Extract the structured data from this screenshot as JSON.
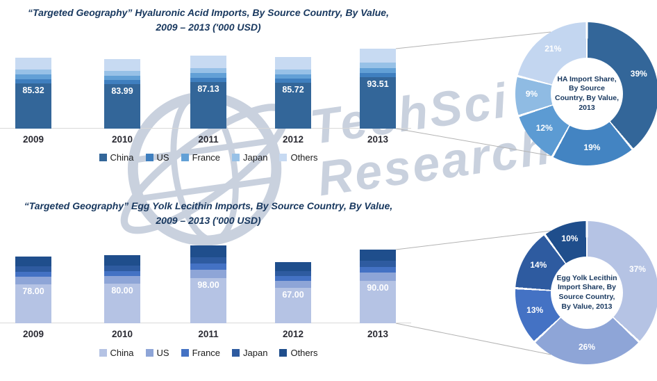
{
  "watermark": {
    "line1": "TechSci",
    "line2": "Research"
  },
  "panels": [
    {
      "title_line1": "“Targeted Geography” Hyaluronic Acid Imports, By Source Country, By Value,",
      "title_line2": "2009 – 2013 ('000 USD)",
      "donut_center_label": "HA Import Share, By Source Country, By Value, 2013"
    },
    {
      "title_line1": "“Targeted Geography” Egg Yolk Lecithin Imports, By Source Country, By Value,",
      "title_line2": "2009 – 2013 ('000 USD)",
      "donut_center_label": "Egg Yolk Lecithin Import Share, By Source Country, By Value, 2013"
    }
  ],
  "chart_data": [
    {
      "type": "bar",
      "stacked": true,
      "title": "“Targeted Geography” Hyaluronic Acid Imports, By Source Country, By Value, 2009 – 2013 ('000 USD)",
      "categories": [
        "2009",
        "2010",
        "2011",
        "2012",
        "2013"
      ],
      "totals": [
        85.32,
        83.99,
        87.13,
        85.72,
        93.51
      ],
      "total_labels": [
        "85.32",
        "83.99",
        "87.13",
        "85.72",
        "93.51"
      ],
      "series": [
        "China",
        "US",
        "France",
        "Japan",
        "Others"
      ],
      "colors": [
        "#336699",
        "#3F7FBF",
        "#62A0D6",
        "#97C1E7",
        "#C7DAF2"
      ],
      "stack_fractions": [
        0.64,
        0.06,
        0.06,
        0.07,
        0.17
      ],
      "unit": "'000 USD",
      "legend_position": "bottom"
    },
    {
      "type": "pie",
      "donut": true,
      "title": "HA Import Share, By Source Country, By Value, 2013",
      "labels": [
        "China",
        "US",
        "France",
        "Japan",
        "Others"
      ],
      "values_pct": [
        39,
        19,
        12,
        9,
        21
      ],
      "colors": [
        "#336699",
        "#4384C2",
        "#5C9BD3",
        "#8FBBE3",
        "#C3D6F0"
      ]
    },
    {
      "type": "bar",
      "stacked": true,
      "title": "“Targeted Geography” Egg Yolk Lecithin Imports, By Source Country, By Value, 2009 – 2013 ('000 USD)",
      "categories": [
        "2009",
        "2010",
        "2011",
        "2012",
        "2013"
      ],
      "totals": [
        78.0,
        80.0,
        98.0,
        67.0,
        90.0
      ],
      "total_labels": [
        "78.00",
        "80.00",
        "98.00",
        "67.00",
        "90.00"
      ],
      "series": [
        "China",
        "US",
        "France",
        "Japan",
        "Others"
      ],
      "colors": [
        "#B5C3E4",
        "#8EA5D7",
        "#4472C4",
        "#2E5BA0",
        "#1F4E8C"
      ],
      "stack_fractions": [
        0.58,
        0.11,
        0.08,
        0.08,
        0.15
      ],
      "unit": "'000 USD",
      "legend_position": "bottom"
    },
    {
      "type": "pie",
      "donut": true,
      "title": "Egg Yolk Lecithin Import Share, By Source Country, By Value, 2013",
      "labels": [
        "China",
        "US",
        "France",
        "Japan",
        "Others"
      ],
      "values_pct": [
        37,
        26,
        13,
        14,
        10
      ],
      "colors": [
        "#B5C3E4",
        "#8EA5D7",
        "#4472C4",
        "#2E5BA0",
        "#1F4E8C"
      ]
    }
  ]
}
